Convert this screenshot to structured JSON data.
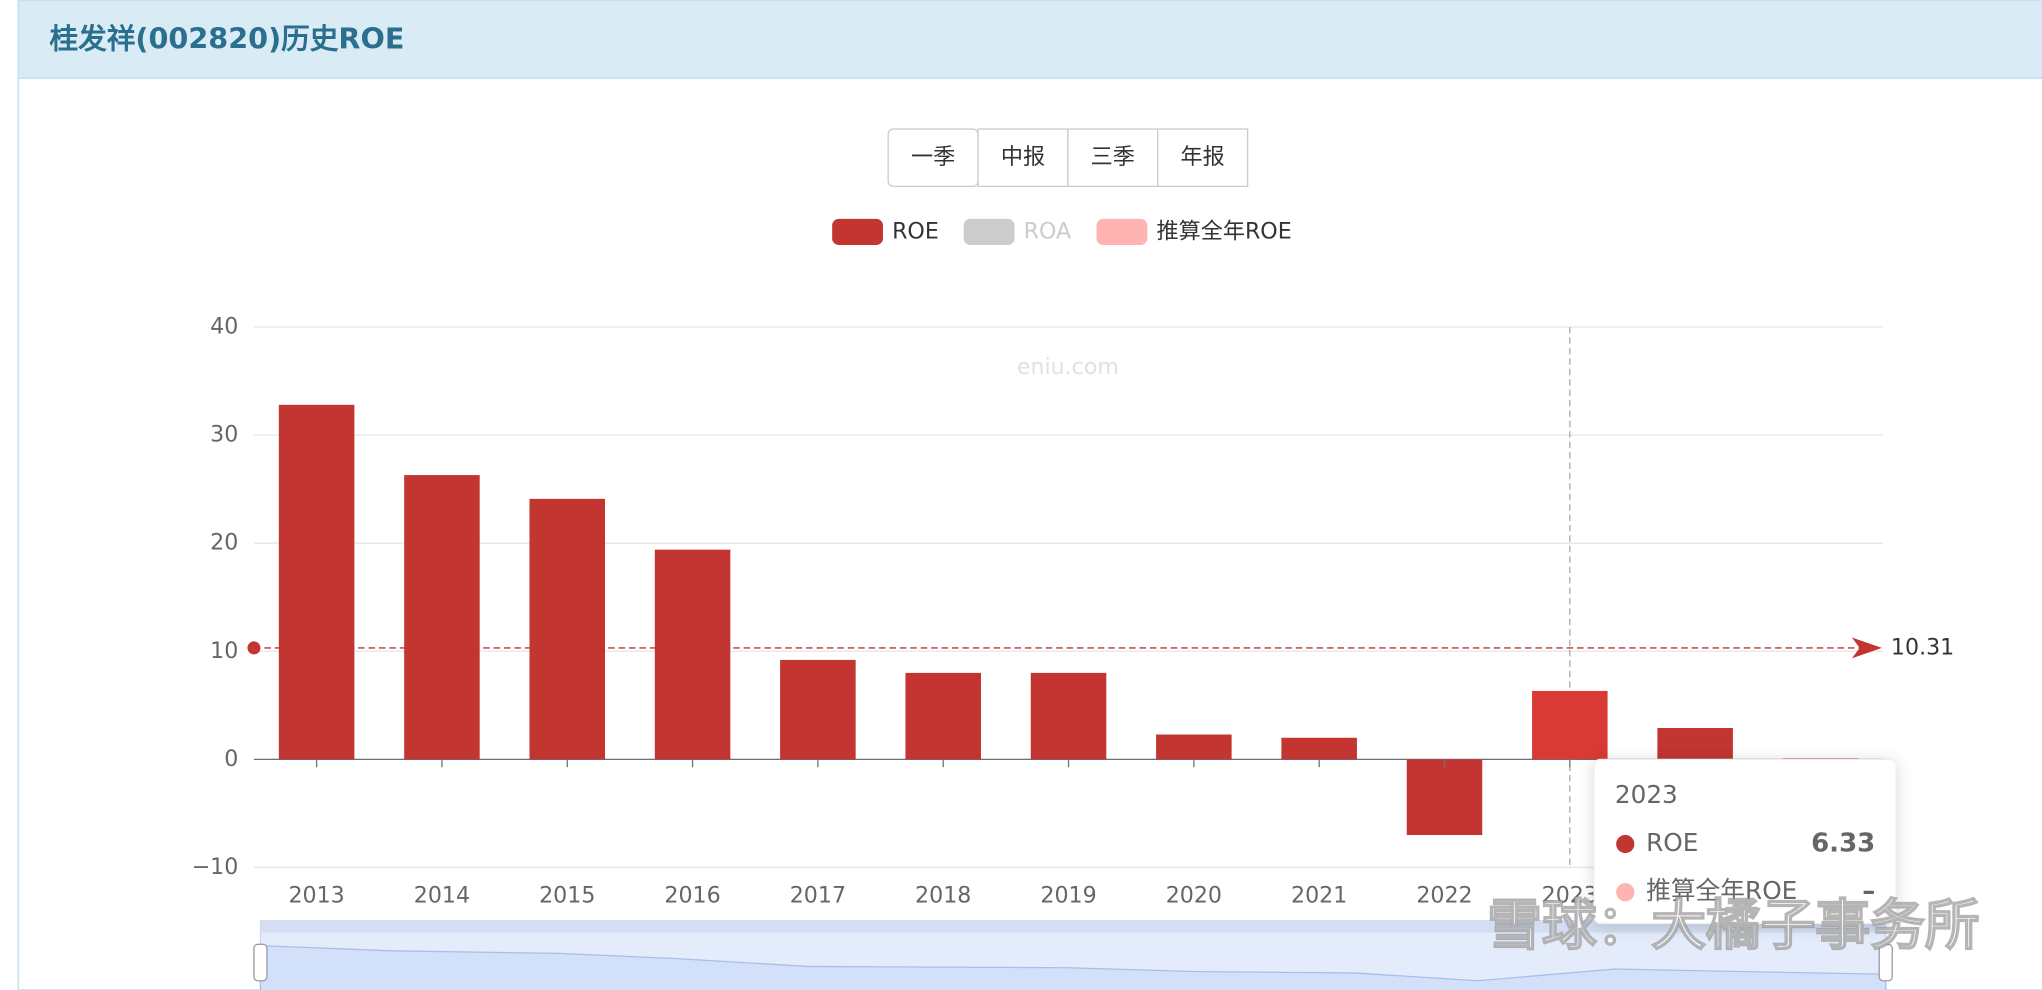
{
  "header": {
    "title": "桂发祥(002820)历史ROE"
  },
  "buttons": [
    "一季",
    "中报",
    "三季",
    "年报"
  ],
  "chart_data": {
    "type": "bar",
    "watermark": "eniu.com",
    "legend": [
      {
        "name": "ROE",
        "color": "#c23531"
      },
      {
        "name": "ROA",
        "color": "#cccccc",
        "disabled": true
      },
      {
        "name": "推算全年ROE",
        "color": "#ffb3b3"
      }
    ],
    "categories": [
      "2013",
      "2014",
      "2015",
      "2016",
      "2017",
      "2018",
      "2019",
      "2020",
      "2021",
      "2022",
      "2023",
      null,
      null
    ],
    "series": [
      {
        "name": "ROE",
        "color": "#c23531",
        "values": [
          32.8,
          26.3,
          24.1,
          19.4,
          9.2,
          8.0,
          8.0,
          2.3,
          2.0,
          -7.0,
          6.33,
          2.9,
          0.1
        ]
      }
    ],
    "highlight_index": 10,
    "average_line": {
      "value": 10.31,
      "color": "#c23531"
    },
    "ylim": [
      -10,
      40
    ],
    "yticks": [
      {
        "value": -10,
        "label": "−10"
      },
      0,
      10,
      20,
      30,
      40
    ],
    "grid": true,
    "tooltip": {
      "title": "2023",
      "rows": [
        {
          "name": "ROE",
          "value": "6.33",
          "color": "#c23531"
        },
        {
          "name": "推算全年ROE",
          "value": "–",
          "color": "#ffb3b3"
        }
      ]
    }
  },
  "credit": "雪球：大橘子事务所"
}
